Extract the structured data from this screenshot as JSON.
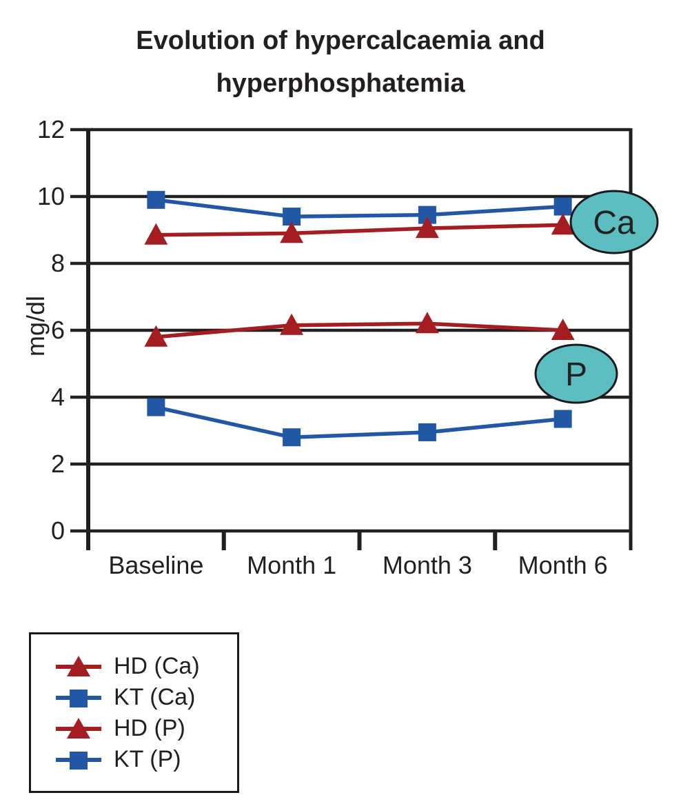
{
  "title": {
    "line1": "Evolution of hypercalcaemia and",
    "line2": "hyperphosphatemia"
  },
  "colors": {
    "hd_red": "#A41D20",
    "kt_blue": "#2157A4",
    "axis_black": "#231F20",
    "annotation_fill": "#5CBEC1",
    "annotation_stroke": "#1A1A1A"
  },
  "annotations": [
    {
      "label": "Ca"
    },
    {
      "label": "P"
    }
  ],
  "chart_data": {
    "type": "line",
    "title": "Evolution of hypercalcaemia and hyperphosphatemia",
    "categories": [
      "Baseline",
      "Month 1",
      "Month 3",
      "Month 6"
    ],
    "series": [
      {
        "name": "HD (Ca)",
        "marker": "triangle",
        "color": "#A41D20",
        "values": [
          8.85,
          8.9,
          9.05,
          9.15
        ]
      },
      {
        "name": "KT (Ca)",
        "marker": "square",
        "color": "#2157A4",
        "values": [
          9.9,
          9.4,
          9.45,
          9.7
        ]
      },
      {
        "name": "HD (P)",
        "marker": "triangle",
        "color": "#A41D20",
        "values": [
          5.8,
          6.15,
          6.2,
          6.0
        ]
      },
      {
        "name": "KT (P)",
        "marker": "square",
        "color": "#2157A4",
        "values": [
          3.7,
          2.8,
          2.95,
          3.35
        ]
      }
    ],
    "ylabel": "mg/dl",
    "xlabel": "",
    "ylim": [
      0,
      12
    ],
    "ytick_step": 2,
    "ytick_labels": [
      "0",
      "2",
      "4",
      "6",
      "8",
      "10",
      "12"
    ],
    "grid": "horizontal",
    "legend_position": "bottom-left",
    "annotation_labels": [
      "Ca",
      "P"
    ]
  }
}
